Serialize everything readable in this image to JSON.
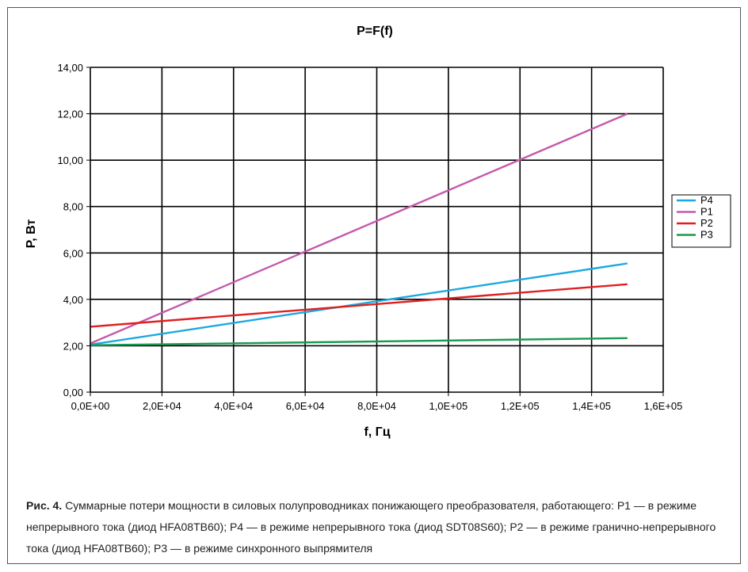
{
  "chart_data": {
    "type": "line",
    "title": "P=F(f)",
    "xlabel": "f, Гц",
    "ylabel": "P, Вт",
    "xlim": [
      0,
      160000
    ],
    "ylim": [
      0,
      14
    ],
    "x_ticks": [
      0,
      20000,
      40000,
      60000,
      80000,
      100000,
      120000,
      140000,
      160000
    ],
    "x_tick_labels": [
      "0,0E+00",
      "2,0E+04",
      "4,0E+04",
      "6,0E+04",
      "8,0E+04",
      "1,0E+05",
      "1,2E+05",
      "1,4E+05",
      "1,6E+05"
    ],
    "y_ticks": [
      0,
      2,
      4,
      6,
      8,
      10,
      12,
      14
    ],
    "y_tick_labels": [
      "0,00",
      "2,00",
      "4,00",
      "6,00",
      "8,00",
      "10,00",
      "12,00",
      "14,00"
    ],
    "grid": true,
    "legend_position": "right",
    "series": [
      {
        "name": "P4",
        "color": "#1ba8e0",
        "x": [
          0,
          150000
        ],
        "y": [
          2.05,
          5.55
        ]
      },
      {
        "name": "P1",
        "color": "#c45aab",
        "x": [
          0,
          150000
        ],
        "y": [
          2.1,
          12.0
        ]
      },
      {
        "name": "P2",
        "color": "#e02020",
        "x": [
          0,
          150000
        ],
        "y": [
          2.82,
          4.65
        ]
      },
      {
        "name": "P3",
        "color": "#1a9a50",
        "x": [
          0,
          150000
        ],
        "y": [
          2.02,
          2.33
        ]
      }
    ]
  },
  "caption": {
    "label": "Рис. 4.",
    "text": "Суммарные потери мощности в силовых полупроводниках понижающего преобразователя, работающего: P1 — в режиме непрерывного тока (диод HFA08TB60); P4 — в режиме непрерывного тока (диод SDT08S60); P2 — в режиме гранично-непрерывного тока (диод HFA08TB60); P3 — в режиме синхронного выпрямителя"
  }
}
